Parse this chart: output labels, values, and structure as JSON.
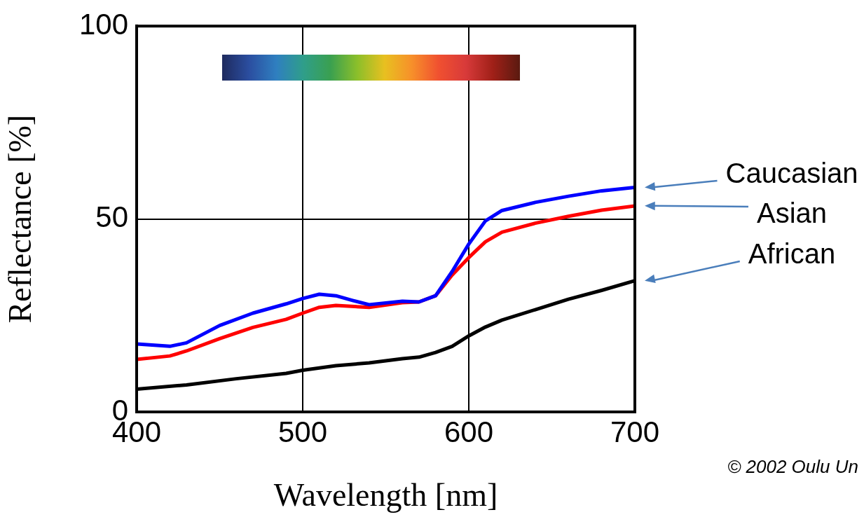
{
  "chart_data": {
    "type": "line",
    "xlabel": "Wavelength [nm]",
    "ylabel": "Reflectance [%]",
    "xlim": [
      400,
      700
    ],
    "xticks": [
      400,
      500,
      600,
      700
    ],
    "ylim": [
      0,
      100
    ],
    "yticks": [
      0,
      50,
      100
    ],
    "grid": true,
    "legend": false,
    "marker": "none",
    "line_style": "solid",
    "annotations": [
      "© 2002 Oulu Un"
    ],
    "series": [
      {
        "name": "Caucasian",
        "color": "#0000ff",
        "x": [
          400,
          420,
          430,
          450,
          470,
          490,
          500,
          510,
          520,
          530,
          540,
          560,
          570,
          580,
          590,
          600,
          610,
          620,
          640,
          660,
          680,
          700
        ],
        "values": [
          17.6,
          17.0,
          17.9,
          22.4,
          25.6,
          28.0,
          29.4,
          30.5,
          30.1,
          28.9,
          27.8,
          28.7,
          28.5,
          30.1,
          36.4,
          43.5,
          49.5,
          52.2,
          54.3,
          55.9,
          57.3,
          58.2
        ]
      },
      {
        "name": "Asian",
        "color": "#ff0000",
        "x": [
          400,
          420,
          430,
          450,
          470,
          490,
          500,
          510,
          520,
          540,
          560,
          570,
          580,
          590,
          600,
          610,
          620,
          640,
          660,
          680,
          700
        ],
        "values": [
          13.6,
          14.5,
          15.8,
          19.0,
          21.9,
          24.0,
          25.6,
          27.1,
          27.6,
          27.1,
          28.3,
          28.5,
          30.1,
          35.5,
          40.0,
          44.1,
          46.6,
          48.9,
          50.7,
          52.3,
          53.4
        ]
      },
      {
        "name": "African",
        "color": "#000000",
        "x": [
          400,
          430,
          460,
          490,
          500,
          520,
          540,
          560,
          570,
          580,
          590,
          600,
          610,
          620,
          640,
          660,
          680,
          700
        ],
        "values": [
          5.9,
          7.0,
          8.6,
          10.0,
          10.8,
          12.0,
          12.7,
          13.8,
          14.2,
          15.4,
          17.0,
          19.7,
          22.0,
          23.8,
          26.5,
          29.2,
          31.5,
          34.0
        ]
      }
    ]
  }
}
